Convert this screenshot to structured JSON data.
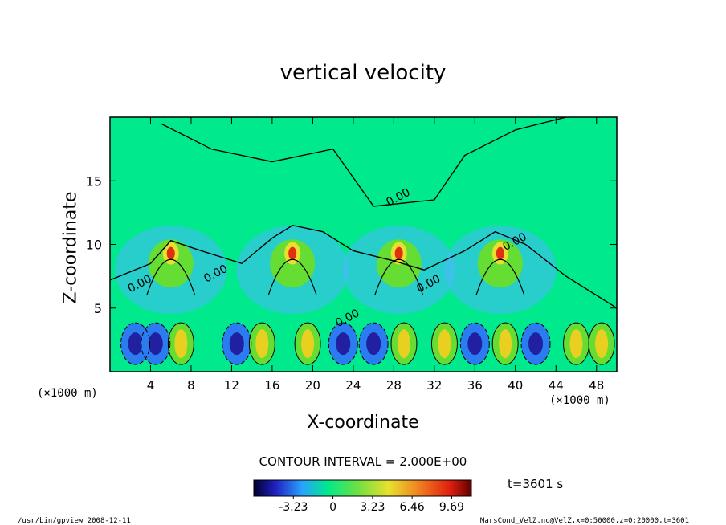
{
  "chart_data": {
    "type": "heatmap",
    "title": "vertical velocity",
    "xlabel": "X-coordinate",
    "ylabel": "Z-coordinate",
    "x_unit_left": "(×1000 m)",
    "x_unit_right": "(×1000 m)",
    "xlim": [
      0,
      50
    ],
    "ylim": [
      0,
      20
    ],
    "xticks": [
      "4",
      "8",
      "12",
      "16",
      "20",
      "24",
      "28",
      "32",
      "36",
      "40",
      "44",
      "48"
    ],
    "yticks": [
      "5",
      "10",
      "15"
    ],
    "contour_interval": "CONTOUR INTERVAL = 2.000E+00",
    "contour_labels": [
      "0.00",
      "0.00",
      "0.00",
      "0.00",
      "0.00",
      "0.00"
    ],
    "colorbar_ticks": [
      "-3.23",
      "0",
      "3.23",
      "6.46",
      "9.69"
    ],
    "colorbar_range": [
      -6.46,
      11.3
    ],
    "time_label": "t=3601 s",
    "updraft_centers_x": [
      6,
      18,
      28.5,
      38.5
    ],
    "max_updraft_height": 11,
    "background_color": "#00e98c",
    "grid": false
  },
  "footer": {
    "left": "/usr/bin/gpview   2008-12-11",
    "right": "MarsCond_VelZ.nc@VelZ,x=0:50000,z=0:20000,t=3601"
  }
}
